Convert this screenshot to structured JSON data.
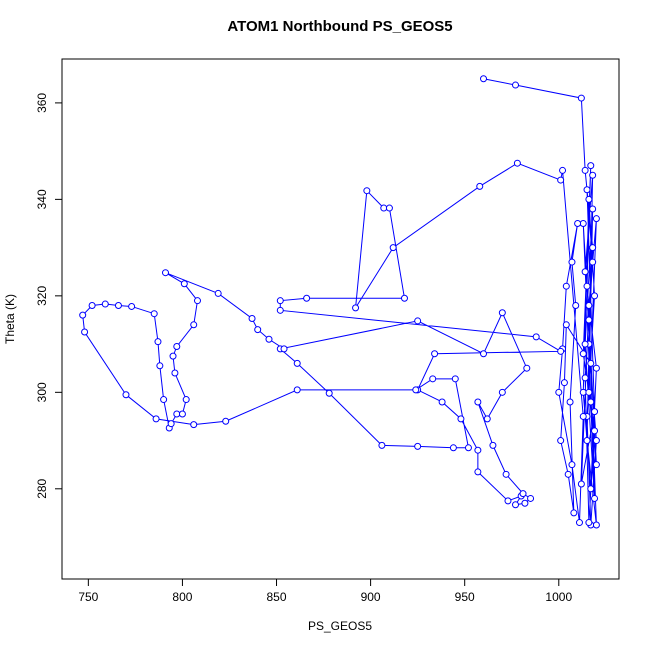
{
  "chart_data": {
    "type": "line",
    "title": "ATOM1 Northbound PS_GEOS5",
    "x_label": "PS_GEOS5",
    "y_label": "Theta (K)",
    "color": "#0000ff",
    "markers": true,
    "xlim": [
      736,
      1032
    ],
    "ylim": [
      261.3,
      369.1
    ],
    "xticks": [
      750,
      800,
      850,
      900,
      950,
      1000
    ],
    "yticks": [
      280,
      300,
      320,
      340,
      360
    ],
    "x": [
      960,
      977,
      1012,
      1014,
      1018,
      1016,
      1020,
      1017,
      1015,
      1019,
      1016,
      1013,
      1017,
      1020,
      1014,
      1018,
      1015,
      1020,
      1016,
      1013,
      1017,
      1019,
      1014,
      1018,
      1016,
      1020,
      1015,
      1017,
      1013,
      1019,
      1016,
      1014,
      1018,
      1015,
      1019,
      1012,
      1016,
      1020,
      1017,
      1004,
      1003,
      1001,
      1005,
      1008,
      1006,
      1009,
      1007,
      1010,
      1004,
      1002,
      1000,
      1007,
      1011,
      1013,
      1002,
      1001,
      978,
      958,
      912,
      892,
      898,
      907,
      910,
      918,
      866,
      852,
      852,
      988,
      1001,
      934,
      925,
      938,
      948,
      957,
      957,
      973,
      980,
      977,
      982,
      985,
      981,
      972,
      965,
      957,
      962,
      970,
      983,
      970,
      960,
      925,
      852,
      861,
      878,
      906,
      925,
      944,
      952,
      945,
      933,
      924,
      861,
      823,
      806,
      786,
      770,
      748,
      747,
      752,
      759,
      766,
      773,
      785,
      787,
      788,
      790,
      793,
      794,
      797,
      800,
      802,
      796,
      795,
      797,
      806,
      808,
      801,
      791,
      819,
      837,
      840,
      846,
      854
    ],
    "values": [
      365,
      363.7,
      361,
      346,
      330,
      310,
      290,
      272.5,
      295,
      320,
      340,
      300,
      280,
      305,
      325,
      345,
      290,
      272.5,
      315,
      335,
      298,
      278,
      310,
      338,
      300,
      285,
      322,
      347,
      308,
      292,
      273,
      303,
      327,
      342,
      296,
      281,
      318,
      336,
      306,
      314,
      302,
      290,
      283,
      275,
      298,
      318,
      327,
      335,
      322,
      309,
      300,
      285,
      273,
      295,
      346,
      344,
      347.5,
      342.7,
      330,
      317.5,
      341.8,
      338.2,
      338.2,
      319.5,
      319.5,
      319,
      317,
      311.5,
      308.5,
      308,
      300.5,
      298,
      294.5,
      288,
      283.5,
      277.5,
      278.5,
      276.7,
      277,
      278,
      279,
      283,
      289,
      298,
      294.5,
      300,
      305,
      316.5,
      308,
      314.8,
      309,
      306,
      299.8,
      289,
      288.8,
      288.5,
      288.5,
      302.8,
      302.8,
      300.5,
      300.5,
      294,
      293.3,
      294.5,
      299.5,
      312.5,
      316,
      318,
      318.3,
      318,
      317.8,
      316.3,
      310.5,
      305.5,
      298.5,
      292.6,
      293.5,
      295.5,
      295.5,
      298.5,
      304,
      307.5,
      309.5,
      314,
      319,
      322.5,
      324.8,
      320.5,
      315.3,
      313,
      311,
      309
    ]
  }
}
